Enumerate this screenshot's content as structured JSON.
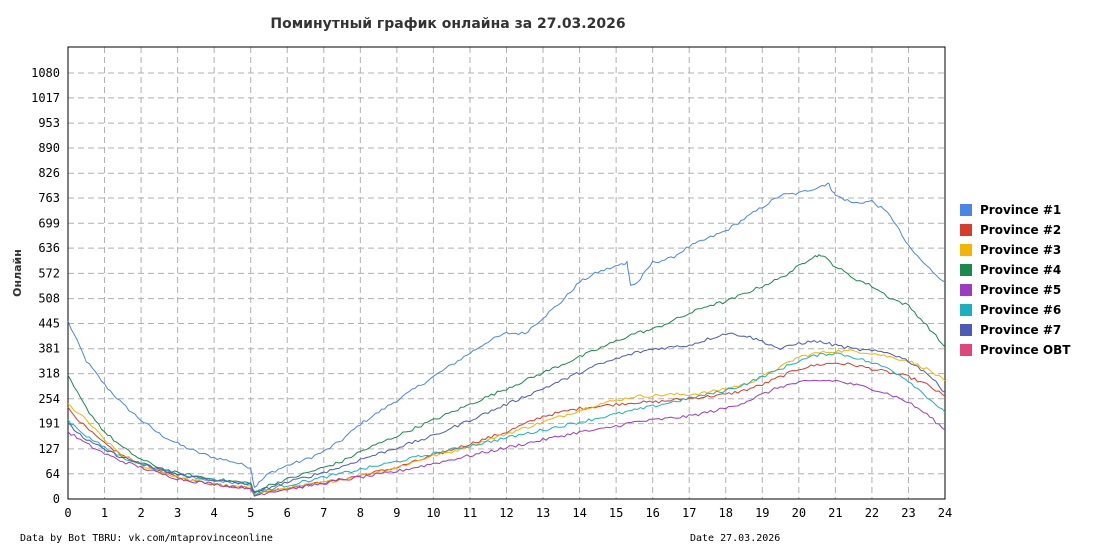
{
  "chart_data": {
    "type": "line",
    "title": "Поминутный график онлайна за 27.03.2026",
    "ylabel": "Онлайн",
    "xlabel": "",
    "x_ticks": [
      "0",
      "1",
      "2",
      "3",
      "4",
      "5",
      "6",
      "7",
      "8",
      "9",
      "10",
      "11",
      "12",
      "13",
      "14",
      "15",
      "16",
      "17",
      "18",
      "19",
      "20",
      "21",
      "22",
      "23",
      "24"
    ],
    "y_ticks": [
      "0",
      "64",
      "127",
      "191",
      "254",
      "318",
      "381",
      "445",
      "508",
      "572",
      "636",
      "699",
      "763",
      "826",
      "890",
      "953",
      "1017",
      "1080"
    ],
    "xlim": [
      0,
      24
    ],
    "ylim": [
      0,
      1080
    ],
    "grid": true,
    "legend_position": "right",
    "series": [
      {
        "name": "Province #1",
        "color": "#4a86e8",
        "x": [
          0,
          0.5,
          1,
          1.5,
          2,
          2.5,
          3,
          3.5,
          4,
          4.5,
          5,
          5.1,
          5.5,
          6,
          6.5,
          7,
          7.5,
          8,
          8.5,
          9,
          9.5,
          10,
          10.5,
          11,
          11.5,
          12,
          12.5,
          13,
          13.5,
          14,
          14.5,
          15,
          15.3,
          15.4,
          15.6,
          16,
          16.5,
          17,
          17.5,
          18,
          18.5,
          19,
          19.5,
          20,
          20.5,
          20.8,
          21,
          21.5,
          22,
          22.5,
          23,
          23.5,
          24
        ],
        "y": [
          450,
          350,
          290,
          240,
          200,
          165,
          140,
          120,
          105,
          95,
          80,
          30,
          65,
          85,
          100,
          120,
          150,
          190,
          220,
          250,
          280,
          310,
          340,
          370,
          400,
          420,
          420,
          460,
          500,
          550,
          575,
          590,
          600,
          540,
          550,
          600,
          610,
          640,
          660,
          680,
          710,
          740,
          770,
          775,
          790,
          800,
          770,
          750,
          755,
          720,
          640,
          590,
          550
        ]
      },
      {
        "name": "Province #2",
        "color": "#d93c2b",
        "x": [
          0,
          0.5,
          1,
          1.5,
          2,
          2.5,
          3,
          3.5,
          4,
          4.5,
          5,
          5.1,
          5.5,
          6,
          6.5,
          7,
          7.5,
          8,
          8.5,
          9,
          9.5,
          10,
          10.5,
          11,
          11.5,
          12,
          12.5,
          13,
          13.5,
          14,
          14.5,
          15,
          15.5,
          16,
          16.5,
          17,
          17.5,
          18,
          18.5,
          19,
          19.5,
          20,
          20.5,
          21,
          21.5,
          22,
          22.5,
          23,
          23.5,
          24
        ],
        "y": [
          230,
          180,
          140,
          110,
          90,
          70,
          55,
          45,
          38,
          32,
          28,
          12,
          20,
          28,
          35,
          42,
          50,
          60,
          70,
          80,
          95,
          110,
          125,
          140,
          155,
          170,
          190,
          210,
          220,
          230,
          235,
          240,
          245,
          245,
          250,
          255,
          260,
          265,
          275,
          290,
          310,
          330,
          340,
          345,
          340,
          330,
          320,
          310,
          290,
          260
        ]
      },
      {
        "name": "Province #3",
        "color": "#f4b400",
        "x": [
          0,
          0.5,
          1,
          1.5,
          2,
          2.5,
          3,
          3.5,
          4,
          4.5,
          5,
          5.1,
          5.5,
          6,
          6.5,
          7,
          7.5,
          8,
          8.5,
          9,
          9.5,
          10,
          10.5,
          11,
          11.5,
          12,
          12.5,
          13,
          13.5,
          14,
          14.5,
          15,
          15.5,
          16,
          16.5,
          17,
          17.5,
          18,
          18.5,
          19,
          19.5,
          20,
          20.5,
          21,
          21.5,
          22,
          22.5,
          23,
          23.5,
          24
        ],
        "y": [
          240,
          200,
          150,
          110,
          85,
          70,
          55,
          45,
          38,
          32,
          30,
          12,
          20,
          28,
          35,
          42,
          50,
          60,
          70,
          80,
          95,
          110,
          120,
          135,
          150,
          165,
          180,
          195,
          210,
          225,
          240,
          250,
          260,
          262,
          265,
          265,
          270,
          280,
          290,
          310,
          335,
          360,
          370,
          375,
          375,
          370,
          360,
          350,
          330,
          300
        ]
      },
      {
        "name": "Province #4",
        "color": "#1a8a4a",
        "x": [
          0,
          0.5,
          1,
          1.5,
          2,
          2.5,
          3,
          3.5,
          4,
          4.5,
          5,
          5.1,
          5.5,
          6,
          6.5,
          7,
          7.5,
          8,
          8.5,
          9,
          9.5,
          10,
          10.5,
          11,
          11.5,
          12,
          12.5,
          13,
          13.5,
          14,
          14.5,
          15,
          15.5,
          16,
          16.5,
          17,
          17.5,
          18,
          18.5,
          19,
          19.5,
          20,
          20.3,
          20.6,
          21,
          21.5,
          22,
          22.5,
          23,
          23.5,
          24
        ],
        "y": [
          310,
          230,
          170,
          130,
          100,
          80,
          65,
          58,
          50,
          45,
          40,
          15,
          35,
          50,
          65,
          80,
          95,
          120,
          140,
          160,
          180,
          200,
          220,
          240,
          260,
          280,
          300,
          320,
          340,
          360,
          380,
          400,
          420,
          430,
          450,
          470,
          490,
          500,
          520,
          540,
          560,
          590,
          610,
          620,
          590,
          560,
          540,
          510,
          490,
          440,
          385
        ]
      },
      {
        "name": "Province #5",
        "color": "#9c3cc2",
        "x": [
          0,
          0.5,
          1,
          1.5,
          2,
          2.5,
          3,
          3.5,
          4,
          4.5,
          5,
          5.1,
          5.5,
          6,
          6.5,
          7,
          7.5,
          8,
          8.5,
          9,
          9.5,
          10,
          10.5,
          11,
          11.5,
          12,
          12.5,
          13,
          13.5,
          14,
          14.5,
          15,
          15.5,
          16,
          16.5,
          17,
          17.5,
          18,
          18.5,
          19,
          19.5,
          20,
          20.5,
          21,
          21.5,
          22,
          22.5,
          23,
          23.5,
          24
        ],
        "y": [
          170,
          140,
          115,
          95,
          80,
          65,
          52,
          44,
          38,
          32,
          28,
          8,
          18,
          25,
          32,
          40,
          48,
          55,
          62,
          70,
          80,
          90,
          100,
          110,
          120,
          130,
          140,
          150,
          160,
          170,
          175,
          185,
          195,
          200,
          205,
          210,
          220,
          230,
          245,
          265,
          285,
          295,
          300,
          300,
          290,
          280,
          265,
          245,
          215,
          175
        ]
      },
      {
        "name": "Province #6",
        "color": "#1ab0c0",
        "x": [
          0,
          0.5,
          1,
          1.5,
          2,
          2.5,
          3,
          3.5,
          4,
          4.5,
          5,
          5.1,
          5.5,
          6,
          6.5,
          7,
          7.5,
          8,
          8.5,
          9,
          9.5,
          10,
          10.5,
          11,
          11.5,
          12,
          12.5,
          13,
          13.5,
          14,
          14.5,
          15,
          15.5,
          16,
          16.5,
          17,
          17.5,
          18,
          18.5,
          19,
          19.5,
          20,
          20.5,
          21,
          21.5,
          22,
          22.5,
          23,
          23.5,
          24
        ],
        "y": [
          200,
          160,
          130,
          105,
          90,
          75,
          62,
          55,
          48,
          42,
          38,
          12,
          25,
          35,
          45,
          55,
          65,
          75,
          85,
          95,
          105,
          115,
          125,
          135,
          145,
          155,
          165,
          175,
          185,
          195,
          205,
          215,
          225,
          235,
          245,
          255,
          265,
          275,
          290,
          310,
          330,
          350,
          365,
          370,
          360,
          345,
          330,
          300,
          260,
          220
        ]
      },
      {
        "name": "Province #7",
        "color": "#4b5bb8",
        "x": [
          0,
          0.5,
          1,
          1.5,
          2,
          2.5,
          3,
          3.5,
          4,
          4.5,
          5,
          5.1,
          5.5,
          6,
          6.5,
          7,
          7.5,
          8,
          8.5,
          9,
          9.5,
          10,
          10.5,
          11,
          11.5,
          12,
          12.5,
          13,
          13.5,
          14,
          14.5,
          15,
          15.5,
          16,
          16.5,
          17,
          17.5,
          18,
          18.5,
          19,
          19.5,
          20,
          20.5,
          21,
          21.5,
          22,
          22.5,
          23,
          23.5,
          24
        ],
        "y": [
          190,
          150,
          125,
          105,
          90,
          75,
          62,
          55,
          48,
          42,
          38,
          15,
          30,
          42,
          55,
          68,
          82,
          100,
          115,
          130,
          145,
          160,
          180,
          200,
          220,
          240,
          260,
          280,
          300,
          320,
          340,
          355,
          370,
          380,
          385,
          390,
          405,
          420,
          415,
          400,
          380,
          395,
          400,
          390,
          380,
          375,
          370,
          350,
          320,
          270
        ]
      },
      {
        "name": "Province OBT",
        "color": "#e0457b",
        "x": [],
        "y": []
      }
    ]
  },
  "footer": {
    "left": "Data by Bot TBRU: vk.com/mtaprovinceonline",
    "right": "Date 27.03.2026"
  }
}
